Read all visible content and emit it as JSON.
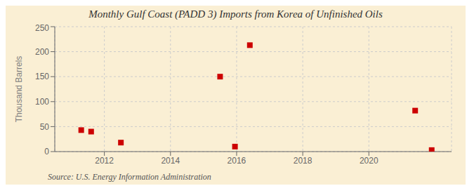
{
  "chart_data": {
    "type": "scatter",
    "title": "Monthly Gulf Coast (PADD 3) Imports from Korea of Unfinished Oils",
    "ylabel": "Thousand Barrels",
    "source": "Source: U.S. Energy Information Administration",
    "x": [
      2011.3,
      2011.6,
      2012.5,
      2015.5,
      2015.95,
      2016.4,
      2021.4,
      2021.9
    ],
    "values": [
      43,
      40,
      18,
      150,
      10,
      213,
      82,
      3
    ],
    "color": "#cc0000",
    "marker": "square",
    "xlim": [
      2010.5,
      2022.5
    ],
    "xticks": [
      2012,
      2014,
      2016,
      2018,
      2020
    ],
    "ylim": [
      0,
      250
    ],
    "yticks": [
      0,
      50,
      100,
      150,
      200,
      250
    ],
    "grid": true
  }
}
